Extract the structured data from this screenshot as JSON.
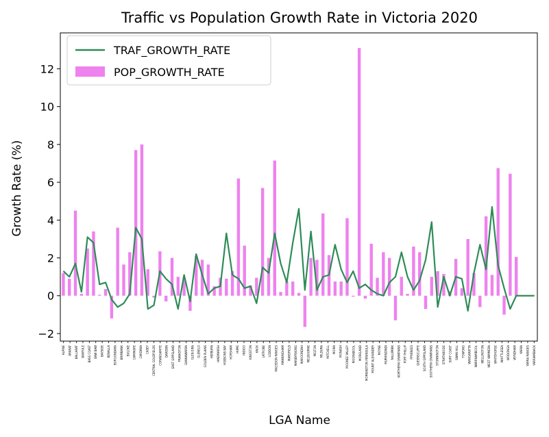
{
  "chart_data": {
    "type": "bar",
    "title": "Traffic vs Population Growth Rate in Victoria 2020",
    "xlabel": "LGA Name",
    "ylabel": "Growth Rate (%)",
    "ylim": [
      -2.4,
      13.9
    ],
    "yticks": [
      -2,
      0,
      2,
      4,
      6,
      8,
      10,
      12
    ],
    "legend_position": "top-left",
    "colors": {
      "bar": "#ee82ee",
      "line": "#2e8b57"
    },
    "categories": [
      "ALPINE",
      "ARARAT",
      "BALLARAT",
      "BANYULE",
      "BASS COAST",
      "BAW BAW",
      "BAYSIDE",
      "BENALLA",
      "BOROONDARA",
      "BRIMBANK",
      "BULOKE",
      "CAMPASPE",
      "CARDINIA",
      "CASEY",
      "CENTRAL GOLDFIELDS",
      "COLAC-OTWAY",
      "CORANGAMITE",
      "DAREBIN",
      "EAST GIPPSLAND",
      "FRANKSTON",
      "GANNAWARRA",
      "GLEN EIRA",
      "GLENELG",
      "GOLDEN PLAINS",
      "GREATER BENDIGO",
      "GREATER DANDENONG",
      "GREATER GEELONG",
      "GREATER SHEPPARTON",
      "HEPBURN",
      "HINDMARSH",
      "HOBSONS BAY",
      "HORSHAM",
      "HUME",
      "INDIGO",
      "KINGSTON",
      "KNOX",
      "LATROBE",
      "LODDON",
      "MACEDON RANGES",
      "MANNINGHAM",
      "MANSFIELD",
      "MARIBYRNONG",
      "MAROONDAH",
      "MELBOURNE",
      "MELTON",
      "MILDURA",
      "MITCHELL",
      "MOIRA",
      "MONASH",
      "MOONEE VALLEY",
      "MOORABOOL",
      "MORELAND",
      "MORNINGTON PENINSULA",
      "MOUNT ALEXANDER",
      "MOYNE",
      "MURRINDINDI",
      "NILLUMBIK",
      "NORTHERN GRAMPIANS",
      "PORT PHILLIP",
      "PYRENEES",
      "QUEENSCLIFFE",
      "SOUTH GIPPSLAND",
      "SOUTHERN GRAMPIANS",
      "STONNINGTON",
      "STRATHBOGIE",
      "SURF COAST",
      "SWAN HILL",
      "TOWONG",
      "WANGARATTA",
      "WARRNAMBOOL",
      "WELLINGTON",
      "WEST WIMMERA",
      "WHITEHORSE",
      "WHITTLESEA",
      "WODONGA",
      "WYNDHAM",
      "YARRA",
      "YARRA RANGES",
      "YARRIAMBIACK"
    ],
    "shown_tick_labels": [
      "ALPINE",
      "ARARAT",
      "BALLARAT",
      "BANYULE",
      "BASS COAST",
      "BAW BAW",
      "BAYSIDE",
      "BENALLA",
      "BOROONDARA",
      "BRIMBANK",
      "BULOKE",
      "CAMPASPE",
      "CARDINIA",
      "CASEY",
      "CENTRAL GOLDFIELDS",
      "CORANGAMITE",
      "DAREBIN",
      "EAST GIPPSLAND",
      "FRANKSTON",
      "GANNAWARRA",
      "GLEN EIRA",
      "GLENELG",
      "GOLDEN PLAINS",
      "HEPBURN",
      "HINDMARSH",
      "HOBSONS BAY",
      "HORSHAM",
      "HUME",
      "INDIGO",
      "KINGSTON",
      "KNOX",
      "LATROBE",
      "LODDON",
      "MACEDON RANGES",
      "MANNINGHAM",
      "MANSFIELD",
      "MARIBYRNONG",
      "MAROONDAH",
      "MELBOURNE",
      "MELTON",
      "MILDURA",
      "MITCHELL",
      "MOIRA",
      "MONASH",
      "MOONEE VALLEY",
      "MOORABOOL",
      "MORELAND",
      "MORNINGTON PENINSULA",
      "MOUNT ALEXANDER",
      "MOYNE",
      "MURRINDINDI",
      "NILLUMBIK",
      "NORTHERN GRAMPIANS",
      "PORT PHILLIP",
      "PYRENEES",
      "QUEENSCLIFFE",
      "SOUTH GIPPSLAND",
      "SOUTHERN GRAMPIANS",
      "STONNINGTON",
      "STRATHBOGIE",
      "SURF COAST",
      "SWAN HILL",
      "TOWONG",
      "WANGARATTA",
      "WARRNAMBOOL",
      "WELLINGTON",
      "WEST WIMMERA",
      "WHITEHORSE",
      "WHITTLESEA",
      "WODONGA",
      "WYNDHAM",
      "YARRA",
      "YARRA RANGES",
      "YARRIAMBIACK"
    ],
    "series": [
      {
        "name": "POP_GROWTH_RATE",
        "kind": "bar",
        "values": [
          1.2,
          0.9,
          4.5,
          0.1,
          2.5,
          3.4,
          0.05,
          0.35,
          -1.2,
          3.6,
          1.65,
          2.3,
          7.7,
          8.0,
          1.4,
          -0.1,
          2.35,
          -0.3,
          2.0,
          1.0,
          0.95,
          -0.8,
          2.1,
          1.9,
          1.65,
          0.5,
          0.95,
          0.9,
          1.3,
          6.2,
          2.65,
          0.55,
          0.95,
          5.7,
          2.0,
          7.15,
          0.2,
          0.75,
          0.75,
          0.15,
          -1.65,
          2.0,
          1.9,
          4.35,
          2.15,
          0.75,
          0.75,
          4.1,
          -0.05,
          13.1,
          -0.15,
          2.75,
          0.95,
          2.3,
          2.0,
          -1.3,
          1.0,
          0.1,
          2.6,
          2.3,
          -0.7,
          1.0,
          1.3,
          1.15,
          0.25,
          1.95,
          0.4,
          3.0,
          1.2,
          -0.6,
          4.2,
          1.1,
          6.75,
          -1.0,
          6.45,
          2.05,
          0.0,
          0.0,
          0.0
        ]
      },
      {
        "name": "TRAF_GROWTH_RATE",
        "kind": "line",
        "values": [
          1.3,
          1.0,
          1.7,
          0.2,
          3.1,
          2.8,
          0.6,
          0.7,
          -0.2,
          -0.6,
          -0.4,
          0.1,
          3.6,
          3.0,
          -0.7,
          -0.5,
          1.3,
          0.9,
          0.6,
          -0.7,
          1.1,
          -0.3,
          2.2,
          1.1,
          0.1,
          0.4,
          0.5,
          3.3,
          1.1,
          0.9,
          0.4,
          0.5,
          -0.4,
          1.5,
          1.2,
          3.3,
          1.7,
          0.7,
          2.8,
          4.6,
          0.3,
          3.4,
          0.3,
          1.0,
          1.1,
          2.7,
          1.4,
          0.7,
          1.3,
          0.4,
          0.6,
          0.3,
          0.1,
          0.0,
          0.7,
          1.0,
          2.3,
          1.0,
          0.3,
          0.8,
          1.9,
          3.9,
          -0.6,
          1.0,
          0.0,
          1.0,
          0.9,
          -0.8,
          1.2,
          2.7,
          1.4,
          4.7,
          1.6,
          0.4,
          -0.7,
          0.0,
          0.0,
          0.0,
          0.0
        ]
      }
    ]
  }
}
